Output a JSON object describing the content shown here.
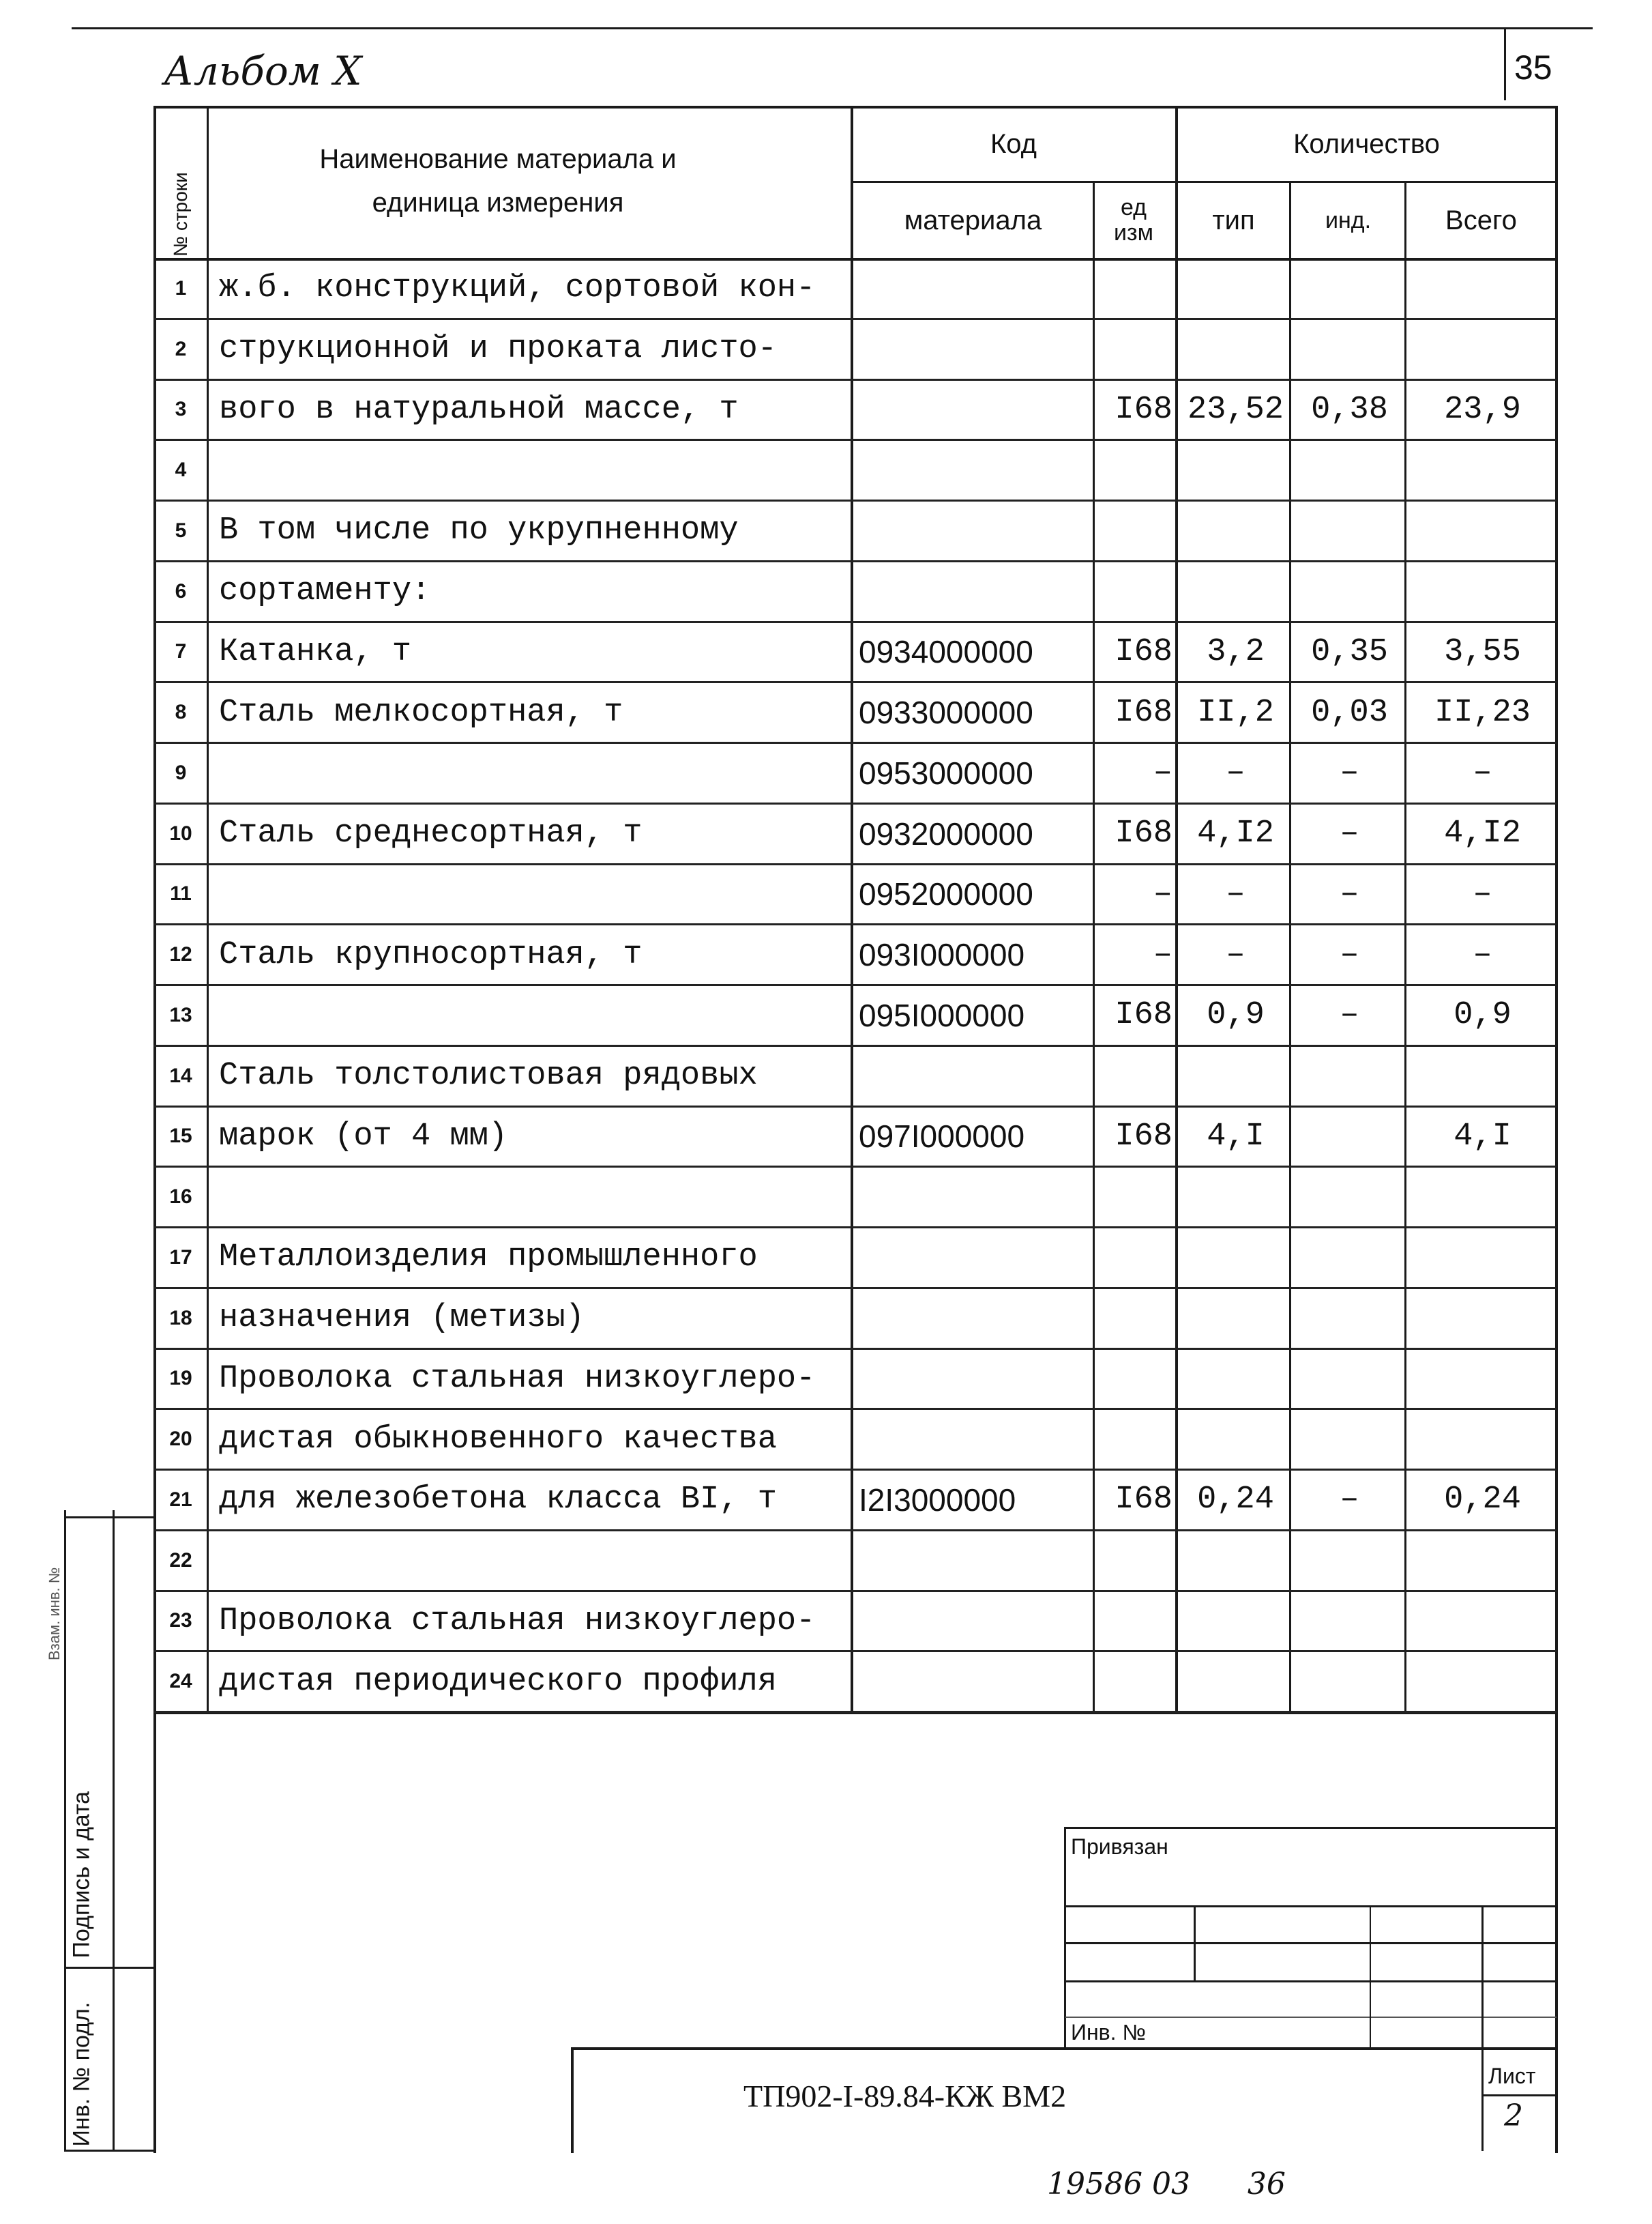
{
  "album": "Альбом X",
  "page_number": "35",
  "header": {
    "row_no": "№ строки",
    "name": "Наименование материала и единица измерения",
    "code_group": "Код",
    "code_material": "материала",
    "code_unit": "ед изм",
    "qty_group": "Количество",
    "qty_tip": "тип",
    "qty_ind": "инд.",
    "qty_total": "Всего"
  },
  "rows": [
    {
      "n": "1",
      "name": "ж.б. конструкций, сортовой кон-",
      "code": "",
      "unit": "",
      "tip": "",
      "ind": "",
      "total": ""
    },
    {
      "n": "2",
      "name": "струкционной  и проката листо-",
      "code": "",
      "unit": "",
      "tip": "",
      "ind": "",
      "total": ""
    },
    {
      "n": "3",
      "name": "вого в натуральной массе, т",
      "code": "",
      "unit": "I68",
      "tip": "23,52",
      "ind": "0,38",
      "total": "23,9"
    },
    {
      "n": "4",
      "name": "",
      "code": "",
      "unit": "",
      "tip": "",
      "ind": "",
      "total": ""
    },
    {
      "n": "5",
      "name": "В том числе по укрупненному",
      "code": "",
      "unit": "",
      "tip": "",
      "ind": "",
      "total": ""
    },
    {
      "n": "6",
      "name": "сортаменту:",
      "code": "",
      "unit": "",
      "tip": "",
      "ind": "",
      "total": ""
    },
    {
      "n": "7",
      "name": "Катанка, т",
      "code": "0934000000",
      "unit": "I68",
      "tip": "3,2",
      "ind": "0,35",
      "total": "3,55"
    },
    {
      "n": "8",
      "name": "Сталь мелкосортная, т",
      "code": "0933000000",
      "unit": "I68",
      "tip": "II,2",
      "ind": "0,03",
      "total": "II,23"
    },
    {
      "n": "9",
      "name": "",
      "code": "0953000000",
      "unit": "–",
      "tip": "–",
      "ind": "–",
      "total": "–"
    },
    {
      "n": "10",
      "name": "Сталь среднесортная, т",
      "code": "0932000000",
      "unit": "I68",
      "tip": "4,I2",
      "ind": "–",
      "total": "4,I2"
    },
    {
      "n": "11",
      "name": "",
      "code": "0952000000",
      "unit": "–",
      "tip": "–",
      "ind": "–",
      "total": "–"
    },
    {
      "n": "12",
      "name": "Сталь крупносортная, т",
      "code": "093I000000",
      "unit": "–",
      "tip": "–",
      "ind": "–",
      "total": "–"
    },
    {
      "n": "13",
      "name": "",
      "code": "095I000000",
      "unit": "I68",
      "tip": "0,9",
      "ind": "–",
      "total": "0,9"
    },
    {
      "n": "14",
      "name": "Сталь толстолистовая рядовых",
      "code": "",
      "unit": "",
      "tip": "",
      "ind": "",
      "total": ""
    },
    {
      "n": "15",
      "name": " марок  (от 4 мм)",
      "code": "097I000000",
      "unit": "I68",
      "tip": "4,I",
      "ind": "",
      "total": "4,I"
    },
    {
      "n": "16",
      "name": "",
      "code": "",
      "unit": "",
      "tip": "",
      "ind": "",
      "total": ""
    },
    {
      "n": "17",
      "name": "Металлоизделия промышленного",
      "code": "",
      "unit": "",
      "tip": "",
      "ind": "",
      "total": ""
    },
    {
      "n": "18",
      "name": "назначения  (метизы)",
      "code": "",
      "unit": "",
      "tip": "",
      "ind": "",
      "total": ""
    },
    {
      "n": "19",
      "name": "Проволока стальная низкоуглеро-",
      "code": "",
      "unit": "",
      "tip": "",
      "ind": "",
      "total": ""
    },
    {
      "n": "20",
      "name": "дистая обыкновенного качества",
      "code": "",
      "unit": "",
      "tip": "",
      "ind": "",
      "total": ""
    },
    {
      "n": "21",
      "name": "для железобетона класса ВI, т",
      "code": "I2I3000000",
      "unit": "I68",
      "tip": "0,24",
      "ind": "–",
      "total": "0,24"
    },
    {
      "n": "22",
      "name": "",
      "code": "",
      "unit": "",
      "tip": "",
      "ind": "",
      "total": ""
    },
    {
      "n": "23",
      "name": "Проволока стальная низкоуглеро-",
      "code": "",
      "unit": "",
      "tip": "",
      "ind": "",
      "total": ""
    },
    {
      "n": "24",
      "name": "дистая периодического профиля",
      "code": "",
      "unit": "",
      "tip": "",
      "ind": "",
      "total": ""
    }
  ],
  "stamp": {
    "privyazan": "Привязан",
    "inv_no": "Инв. №",
    "doc_code": "ТП902-I-89.84-КЖ ВМ2",
    "sheet_label": "Лист",
    "sheet_no": "2"
  },
  "margin": {
    "inv_podl": "Инв. № подл.",
    "signature": "Подпись и дата",
    "vzam": "Взам. инв. №"
  },
  "footer_note": "19586 03      36"
}
